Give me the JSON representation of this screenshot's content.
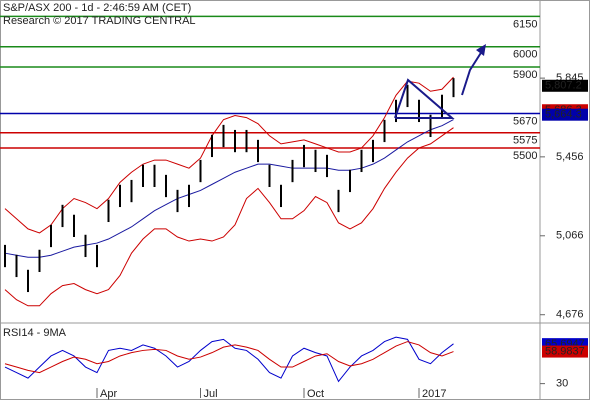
{
  "chart_data": [
    {
      "type": "ohlc",
      "title": "S&P/ASX 200 - 1d - 2:46:59 AM (CET)",
      "subtitle": "Research © 2017 TRADING CENTRAL",
      "categories": [
        null,
        null,
        null,
        null,
        null,
        null,
        null,
        null,
        "Apr",
        null,
        null,
        null,
        null,
        null,
        null,
        null,
        null,
        "Jul",
        null,
        null,
        null,
        null,
        null,
        null,
        null,
        null,
        "Oct",
        null,
        null,
        null,
        null,
        null,
        null,
        null,
        null,
        null,
        "2017",
        null,
        null,
        null
      ],
      "high": [
        5021,
        4972,
        4898,
        4997,
        5120,
        5219,
        5170,
        5071,
        5021,
        5244,
        5318,
        5342,
        5417,
        5417,
        5367,
        5293,
        5318,
        5441,
        5565,
        5614,
        5589,
        5589,
        5540,
        5417,
        5318,
        5441,
        5515,
        5491,
        5466,
        5293,
        5392,
        5491,
        5540,
        5639,
        5738,
        5812,
        5738,
        5664,
        5763,
        5845
      ],
      "low": [
        4911,
        4862,
        4788,
        4887,
        5010,
        5109,
        5060,
        4961,
        4911,
        5134,
        5208,
        5232,
        5307,
        5307,
        5257,
        5183,
        5208,
        5331,
        5455,
        5504,
        5479,
        5479,
        5430,
        5307,
        5208,
        5331,
        5405,
        5381,
        5356,
        5183,
        5282,
        5381,
        5430,
        5529,
        5628,
        5702,
        5628,
        5554,
        5653,
        5751
      ],
      "color": "#000000",
      "series": [
        {
          "color": "#cc0000",
          "values": [
            5200,
            5150,
            5100,
            5080,
            5120,
            5200,
            5250,
            5230,
            5200,
            5250,
            5330,
            5380,
            5420,
            5440,
            5440,
            5420,
            5400,
            5450,
            5560,
            5640,
            5660,
            5650,
            5620,
            5560,
            5520,
            5530,
            5540,
            5520,
            5500,
            5480,
            5480,
            5500,
            5560,
            5650,
            5760,
            5830,
            5820,
            5780,
            5790,
            5850
          ]
        },
        {
          "color": "#cc0000",
          "values": [
            4800,
            4750,
            4720,
            4720,
            4780,
            4820,
            4830,
            4800,
            4780,
            4800,
            4870,
            4980,
            5050,
            5100,
            5100,
            5060,
            5040,
            5050,
            5040,
            5060,
            5120,
            5250,
            5300,
            5230,
            5150,
            5150,
            5190,
            5260,
            5230,
            5130,
            5100,
            5130,
            5200,
            5300,
            5380,
            5450,
            5500,
            5520,
            5560,
            5600
          ]
        },
        {
          "color": "#1a1aa0",
          "values": [
            4980,
            4970,
            4960,
            4960,
            4970,
            4990,
            5010,
            5020,
            5030,
            5050,
            5080,
            5110,
            5150,
            5190,
            5220,
            5250,
            5270,
            5290,
            5320,
            5350,
            5380,
            5400,
            5420,
            5420,
            5410,
            5400,
            5400,
            5400,
            5400,
            5390,
            5390,
            5400,
            5420,
            5450,
            5490,
            5530,
            5560,
            5590,
            5610,
            5640
          ]
        }
      ],
      "levels": [
        {
          "value": 6150,
          "color": "#1a8a1a"
        },
        {
          "value": 6000,
          "color": "#1a8a1a"
        },
        {
          "value": 5900,
          "color": "#1a8a1a"
        },
        {
          "value": 5670,
          "color": "#0000aa"
        },
        {
          "value": 5575,
          "color": "#cc0000"
        },
        {
          "value": 5500,
          "color": "#cc0000"
        }
      ],
      "price_labels": [
        {
          "value": 5807.2,
          "label": "5,807.2",
          "color": "#000000"
        },
        {
          "value": 5686.3,
          "label": "5,686.3",
          "color": "#cc0000"
        },
        {
          "value": 5664.3,
          "label": "5,664.3",
          "color": "#0000aa"
        }
      ],
      "ylim": [
        4640,
        6231
      ],
      "yticks": [
        {
          "value": 5845,
          "label": "5,845"
        },
        {
          "value": 5456,
          "label": "5,456"
        },
        {
          "value": 5066,
          "label": "5,066"
        },
        {
          "value": 4676,
          "label": "4,676"
        }
      ]
    },
    {
      "type": "line",
      "title": "RSI14 - 9MA",
      "series": [
        {
          "color": "#0000cc",
          "values": [
            45,
            40,
            35,
            45,
            55,
            60,
            55,
            45,
            40,
            60,
            62,
            60,
            65,
            62,
            55,
            45,
            50,
            60,
            68,
            70,
            62,
            60,
            52,
            40,
            35,
            55,
            62,
            58,
            55,
            32,
            45,
            55,
            60,
            68,
            72,
            70,
            52,
            48,
            58,
            66
          ]
        },
        {
          "color": "#cc0000",
          "values": [
            48,
            45,
            42,
            40,
            45,
            50,
            54,
            52,
            48,
            50,
            55,
            58,
            60,
            61,
            60,
            55,
            52,
            54,
            58,
            63,
            65,
            63,
            60,
            52,
            45,
            45,
            50,
            55,
            57,
            50,
            46,
            48,
            52,
            58,
            64,
            68,
            65,
            58,
            55,
            59
          ]
        }
      ],
      "value_labels": [
        {
          "value": 65.6947,
          "color": "#0000cc"
        },
        {
          "value": 58.9837,
          "color": "#cc0000"
        }
      ],
      "ylim": [
        17,
        83
      ],
      "yticks": [
        30
      ]
    }
  ]
}
